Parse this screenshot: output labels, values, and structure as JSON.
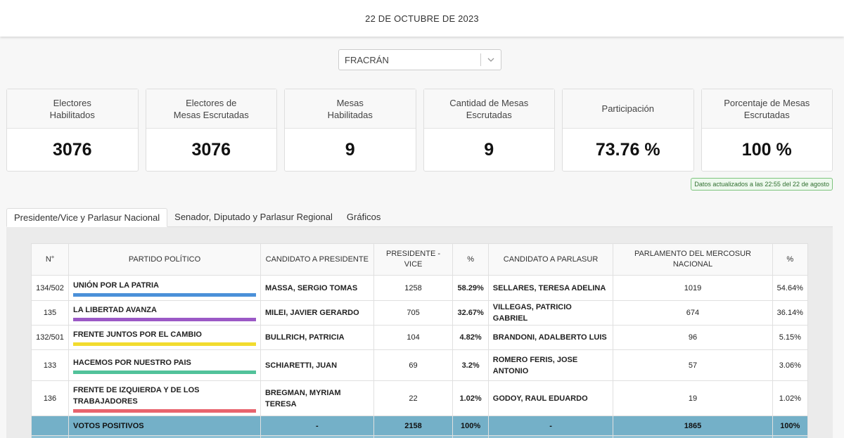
{
  "header": {
    "date": "22 DE OCTUBRE DE 2023"
  },
  "location_select": {
    "value": "FRACRÁN",
    "icon": "chevron-down-icon"
  },
  "stats": [
    {
      "label": "Electores\nHabilitados",
      "value": "3076"
    },
    {
      "label": "Electores de\nMesas Escrutadas",
      "value": "3076"
    },
    {
      "label": "Mesas\nHabilitadas",
      "value": "9"
    },
    {
      "label": "Cantidad de Mesas Escrutadas",
      "value": "9"
    },
    {
      "label": "Participación",
      "value": "73.76 %"
    },
    {
      "label": "Porcentaje de Mesas Escrutadas",
      "value": "100 %"
    }
  ],
  "updated_badge": "Datos actualizados a las 22:55 del 22 de agosto",
  "tabs": [
    {
      "label": "Presidente/Vice y Parlasur Nacional",
      "active": true
    },
    {
      "label": "Senador, Diputado y Parlasur Regional",
      "active": false
    },
    {
      "label": "Gráficos",
      "active": false
    }
  ],
  "table": {
    "headers": [
      "N°",
      "PARTIDO POLÍTICO",
      "CANDIDATO A PRESIDENTE",
      "PRESIDENTE - VICE",
      "%",
      "CANDIDATO A PARLASUR",
      "PARLAMENTO DEL MERCOSUR NACIONAL",
      "%"
    ],
    "rows": [
      {
        "n": "134/502",
        "party": "UNIÓN POR LA PATRIA",
        "color": "#4a90d9",
        "president": "MASSA, SERGIO TOMAS",
        "votes": "1258",
        "pct": "58.29%",
        "parlasur": "SELLARES, TERESA ADELINA",
        "parlasur_votes": "1019",
        "parlasur_pct": "54.64%"
      },
      {
        "n": "135",
        "party": "LA LIBERTAD AVANZA",
        "color": "#9b59c6",
        "president": "MILEI, JAVIER GERARDO",
        "votes": "705",
        "pct": "32.67%",
        "parlasur": "VILLEGAS, PATRICIO GABRIEL",
        "parlasur_votes": "674",
        "parlasur_pct": "36.14%"
      },
      {
        "n": "132/501",
        "party": "FRENTE JUNTOS POR EL CAMBIO",
        "color": "#f2dc2e",
        "president": "BULLRICH, PATRICIA",
        "votes": "104",
        "pct": "4.82%",
        "parlasur": "BRANDONI, ADALBERTO LUIS",
        "parlasur_votes": "96",
        "parlasur_pct": "5.15%"
      },
      {
        "n": "133",
        "party": "HACEMOS POR NUESTRO PAIS",
        "color": "#52c29a",
        "president": "SCHIARETTI, JUAN",
        "votes": "69",
        "pct": "3.2%",
        "parlasur": "ROMERO FERIS, JOSE ANTONIO",
        "parlasur_votes": "57",
        "parlasur_pct": "3.06%"
      },
      {
        "n": "136",
        "party": "FRENTE DE IZQUIERDA Y DE LOS TRABAJADORES",
        "color": "#e8646e",
        "president": "BREGMAN, MYRIAM TERESA",
        "votes": "22",
        "pct": "1.02%",
        "parlasur": "GODOY, RAUL EDUARDO",
        "parlasur_votes": "19",
        "parlasur_pct": "1.02%"
      }
    ],
    "positive": {
      "label": "VOTOS POSITIVOS",
      "president": "-",
      "votes": "2158",
      "pct": "100%",
      "parlasur": "-",
      "parlasur_votes": "1865",
      "parlasur_pct": "100%"
    }
  }
}
